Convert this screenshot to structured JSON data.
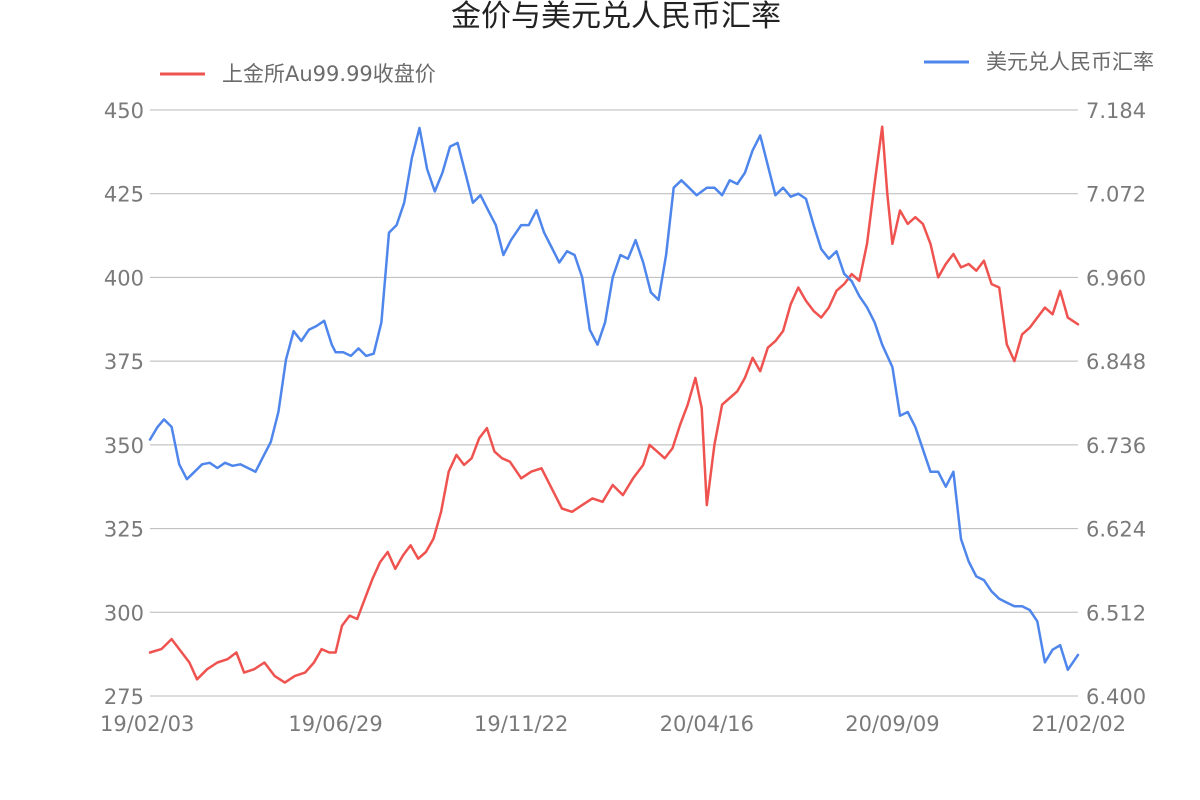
{
  "chart_data": {
    "type": "line",
    "title": "金价与美元兑人民币汇率",
    "xlabel": "",
    "ylabel_left": "",
    "ylabel_right": "",
    "x_ticks": [
      "19/02/03",
      "19/06/29",
      "19/11/22",
      "20/04/16",
      "20/09/09",
      "21/02/02"
    ],
    "x_range": [
      "19/02/03",
      "21/02/02"
    ],
    "left_axis": {
      "min": 275,
      "max": 450,
      "ticks": [
        "275",
        "300",
        "325",
        "350",
        "375",
        "400",
        "425",
        "450"
      ]
    },
    "right_axis": {
      "min": 6.4,
      "max": 7.184,
      "ticks": [
        "6.400",
        "6.512",
        "6.624",
        "6.736",
        "6.848",
        "6.960",
        "7.072",
        "7.184"
      ]
    },
    "grid": true,
    "legend_placement": "top",
    "series": [
      {
        "name": "上金所Au99.99收盘价",
        "axis": "left",
        "color": "#ef5350",
        "points": [
          [
            "19/02/03",
            288
          ],
          [
            "19/02/12",
            289
          ],
          [
            "19/02/20",
            292
          ],
          [
            "19/02/28",
            288
          ],
          [
            "19/03/06",
            285
          ],
          [
            "19/03/12",
            280
          ],
          [
            "19/03/20",
            283
          ],
          [
            "19/03/28",
            285
          ],
          [
            "19/04/05",
            286
          ],
          [
            "19/04/12",
            288
          ],
          [
            "19/04/18",
            282
          ],
          [
            "19/04/26",
            283
          ],
          [
            "19/05/04",
            285
          ],
          [
            "19/05/12",
            281
          ],
          [
            "19/05/20",
            279
          ],
          [
            "19/05/28",
            281
          ],
          [
            "19/06/05",
            282
          ],
          [
            "19/06/12",
            285
          ],
          [
            "19/06/18",
            289
          ],
          [
            "19/06/24",
            288
          ],
          [
            "19/06/29",
            288
          ],
          [
            "19/07/04",
            296
          ],
          [
            "19/07/10",
            299
          ],
          [
            "19/07/16",
            298
          ],
          [
            "19/07/22",
            304
          ],
          [
            "19/07/28",
            310
          ],
          [
            "19/08/03",
            315
          ],
          [
            "19/08/09",
            318
          ],
          [
            "19/08/15",
            313
          ],
          [
            "19/08/21",
            317
          ],
          [
            "19/08/27",
            320
          ],
          [
            "19/09/02",
            316
          ],
          [
            "19/09/08",
            318
          ],
          [
            "19/09/14",
            322
          ],
          [
            "19/09/20",
            330
          ],
          [
            "19/09/26",
            342
          ],
          [
            "19/10/02",
            347
          ],
          [
            "19/10/08",
            344
          ],
          [
            "19/10/14",
            346
          ],
          [
            "19/10/20",
            352
          ],
          [
            "19/10/26",
            355
          ],
          [
            "19/11/01",
            348
          ],
          [
            "19/11/07",
            346
          ],
          [
            "19/11/13",
            345
          ],
          [
            "19/11/22",
            340
          ],
          [
            "19/11/30",
            342
          ],
          [
            "19/12/08",
            343
          ],
          [
            "19/12/16",
            337
          ],
          [
            "19/12/24",
            331
          ],
          [
            "20/01/01",
            330
          ],
          [
            "20/01/09",
            332
          ],
          [
            "20/01/17",
            334
          ],
          [
            "20/01/25",
            333
          ],
          [
            "20/02/02",
            338
          ],
          [
            "20/02/10",
            335
          ],
          [
            "20/02/18",
            340
          ],
          [
            "20/02/26",
            344
          ],
          [
            "20/03/02",
            350
          ],
          [
            "20/03/08",
            348
          ],
          [
            "20/03/14",
            346
          ],
          [
            "20/03/20",
            349
          ],
          [
            "20/03/26",
            356
          ],
          [
            "20/04/01",
            362
          ],
          [
            "20/04/07",
            370
          ],
          [
            "20/04/12",
            361
          ],
          [
            "20/04/16",
            332
          ],
          [
            "20/04/22",
            350
          ],
          [
            "20/04/28",
            362
          ],
          [
            "20/05/04",
            364
          ],
          [
            "20/05/10",
            366
          ],
          [
            "20/05/16",
            370
          ],
          [
            "20/05/22",
            376
          ],
          [
            "20/05/28",
            372
          ],
          [
            "20/06/03",
            379
          ],
          [
            "20/06/09",
            381
          ],
          [
            "20/06/15",
            384
          ],
          [
            "20/06/21",
            392
          ],
          [
            "20/06/27",
            397
          ],
          [
            "20/07/03",
            393
          ],
          [
            "20/07/09",
            390
          ],
          [
            "20/07/15",
            388
          ],
          [
            "20/07/21",
            391
          ],
          [
            "20/07/27",
            396
          ],
          [
            "20/08/02",
            398
          ],
          [
            "20/08/08",
            401
          ],
          [
            "20/08/14",
            399
          ],
          [
            "20/08/20",
            410
          ],
          [
            "20/08/26",
            428
          ],
          [
            "20/09/01",
            445
          ],
          [
            "20/09/05",
            425
          ],
          [
            "20/09/09",
            410
          ],
          [
            "20/09/15",
            420
          ],
          [
            "20/09/21",
            416
          ],
          [
            "20/09/27",
            418
          ],
          [
            "20/10/03",
            416
          ],
          [
            "20/10/09",
            410
          ],
          [
            "20/10/15",
            400
          ],
          [
            "20/10/21",
            404
          ],
          [
            "20/10/27",
            407
          ],
          [
            "20/11/02",
            403
          ],
          [
            "20/11/08",
            404
          ],
          [
            "20/11/14",
            402
          ],
          [
            "20/11/20",
            405
          ],
          [
            "20/11/26",
            398
          ],
          [
            "20/12/02",
            397
          ],
          [
            "20/12/08",
            380
          ],
          [
            "20/12/14",
            375
          ],
          [
            "20/12/20",
            383
          ],
          [
            "20/12/26",
            385
          ],
          [
            "21/01/01",
            388
          ],
          [
            "21/01/07",
            391
          ],
          [
            "21/01/13",
            389
          ],
          [
            "21/01/19",
            396
          ],
          [
            "21/01/25",
            388
          ],
          [
            "21/02/02",
            386
          ]
        ]
      },
      {
        "name": "美元兑人民币汇率",
        "axis": "right",
        "color": "#4f86ec",
        "points": [
          [
            "19/02/03",
            6.743
          ],
          [
            "19/02/09",
            6.76
          ],
          [
            "19/02/14",
            6.77
          ],
          [
            "19/02/20",
            6.76
          ],
          [
            "19/02/26",
            6.71
          ],
          [
            "19/03/04",
            6.69
          ],
          [
            "19/03/10",
            6.7
          ],
          [
            "19/03/16",
            6.71
          ],
          [
            "19/03/22",
            6.712
          ],
          [
            "19/03/28",
            6.705
          ],
          [
            "19/04/03",
            6.712
          ],
          [
            "19/04/09",
            6.708
          ],
          [
            "19/04/15",
            6.71
          ],
          [
            "19/04/21",
            6.705
          ],
          [
            "19/04/27",
            6.7
          ],
          [
            "19/05/03",
            6.72
          ],
          [
            "19/05/09",
            6.74
          ],
          [
            "19/05/15",
            6.78
          ],
          [
            "19/05/21",
            6.85
          ],
          [
            "19/05/27",
            6.888
          ],
          [
            "19/06/02",
            6.875
          ],
          [
            "19/06/08",
            6.89
          ],
          [
            "19/06/14",
            6.895
          ],
          [
            "19/06/20",
            6.902
          ],
          [
            "19/06/26",
            6.87
          ],
          [
            "19/06/29",
            6.86
          ],
          [
            "19/07/05",
            6.86
          ],
          [
            "19/07/11",
            6.855
          ],
          [
            "19/07/17",
            6.865
          ],
          [
            "19/07/23",
            6.855
          ],
          [
            "19/07/29",
            6.858
          ],
          [
            "19/08/04",
            6.9
          ],
          [
            "19/08/10",
            7.02
          ],
          [
            "19/08/16",
            7.03
          ],
          [
            "19/08/22",
            7.06
          ],
          [
            "19/08/28",
            7.12
          ],
          [
            "19/09/03",
            7.16
          ],
          [
            "19/09/09",
            7.105
          ],
          [
            "19/09/15",
            7.075
          ],
          [
            "19/09/21",
            7.1
          ],
          [
            "19/09/27",
            7.135
          ],
          [
            "19/10/03",
            7.14
          ],
          [
            "19/10/09",
            7.1
          ],
          [
            "19/10/15",
            7.06
          ],
          [
            "19/10/21",
            7.07
          ],
          [
            "19/10/27",
            7.05
          ],
          [
            "19/11/02",
            7.03
          ],
          [
            "19/11/08",
            6.99
          ],
          [
            "19/11/14",
            7.01
          ],
          [
            "19/11/22",
            7.03
          ],
          [
            "19/11/28",
            7.03
          ],
          [
            "19/12/04",
            7.05
          ],
          [
            "19/12/10",
            7.02
          ],
          [
            "19/12/16",
            7.0
          ],
          [
            "19/12/22",
            6.98
          ],
          [
            "19/12/28",
            6.995
          ],
          [
            "20/01/03",
            6.99
          ],
          [
            "20/01/09",
            6.96
          ],
          [
            "20/01/15",
            6.89
          ],
          [
            "20/01/21",
            6.87
          ],
          [
            "20/01/27",
            6.9
          ],
          [
            "20/02/02",
            6.96
          ],
          [
            "20/02/08",
            6.99
          ],
          [
            "20/02/14",
            6.985
          ],
          [
            "20/02/20",
            7.01
          ],
          [
            "20/02/26",
            6.98
          ],
          [
            "20/03/03",
            6.94
          ],
          [
            "20/03/09",
            6.93
          ],
          [
            "20/03/15",
            6.99
          ],
          [
            "20/03/21",
            7.08
          ],
          [
            "20/03/27",
            7.09
          ],
          [
            "20/04/02",
            7.08
          ],
          [
            "20/04/08",
            7.07
          ],
          [
            "20/04/16",
            7.08
          ],
          [
            "20/04/22",
            7.08
          ],
          [
            "20/04/28",
            7.07
          ],
          [
            "20/05/04",
            7.09
          ],
          [
            "20/05/10",
            7.085
          ],
          [
            "20/05/16",
            7.1
          ],
          [
            "20/05/22",
            7.13
          ],
          [
            "20/05/28",
            7.15
          ],
          [
            "20/06/03",
            7.11
          ],
          [
            "20/06/09",
            7.07
          ],
          [
            "20/06/15",
            7.08
          ],
          [
            "20/06/21",
            7.068
          ],
          [
            "20/06/27",
            7.072
          ],
          [
            "20/07/03",
            7.065
          ],
          [
            "20/07/09",
            7.03
          ],
          [
            "20/07/15",
            6.998
          ],
          [
            "20/07/21",
            6.985
          ],
          [
            "20/07/27",
            6.995
          ],
          [
            "20/08/02",
            6.965
          ],
          [
            "20/08/08",
            6.955
          ],
          [
            "20/08/14",
            6.935
          ],
          [
            "20/08/20",
            6.92
          ],
          [
            "20/08/26",
            6.9
          ],
          [
            "20/09/01",
            6.87
          ],
          [
            "20/09/09",
            6.84
          ],
          [
            "20/09/15",
            6.775
          ],
          [
            "20/09/21",
            6.78
          ],
          [
            "20/09/27",
            6.76
          ],
          [
            "20/10/03",
            6.73
          ],
          [
            "20/10/09",
            6.7
          ],
          [
            "20/10/15",
            6.7
          ],
          [
            "20/10/21",
            6.68
          ],
          [
            "20/10/27",
            6.7
          ],
          [
            "20/11/02",
            6.61
          ],
          [
            "20/11/08",
            6.58
          ],
          [
            "20/11/14",
            6.56
          ],
          [
            "20/11/20",
            6.555
          ],
          [
            "20/11/26",
            6.54
          ],
          [
            "20/12/02",
            6.53
          ],
          [
            "20/12/08",
            6.525
          ],
          [
            "20/12/14",
            6.52
          ],
          [
            "20/12/20",
            6.52
          ],
          [
            "20/12/26",
            6.515
          ],
          [
            "21/01/01",
            6.5
          ],
          [
            "21/01/07",
            6.445
          ],
          [
            "21/01/13",
            6.462
          ],
          [
            "21/01/19",
            6.468
          ],
          [
            "21/01/25",
            6.435
          ],
          [
            "21/02/02",
            6.455
          ]
        ]
      }
    ]
  }
}
